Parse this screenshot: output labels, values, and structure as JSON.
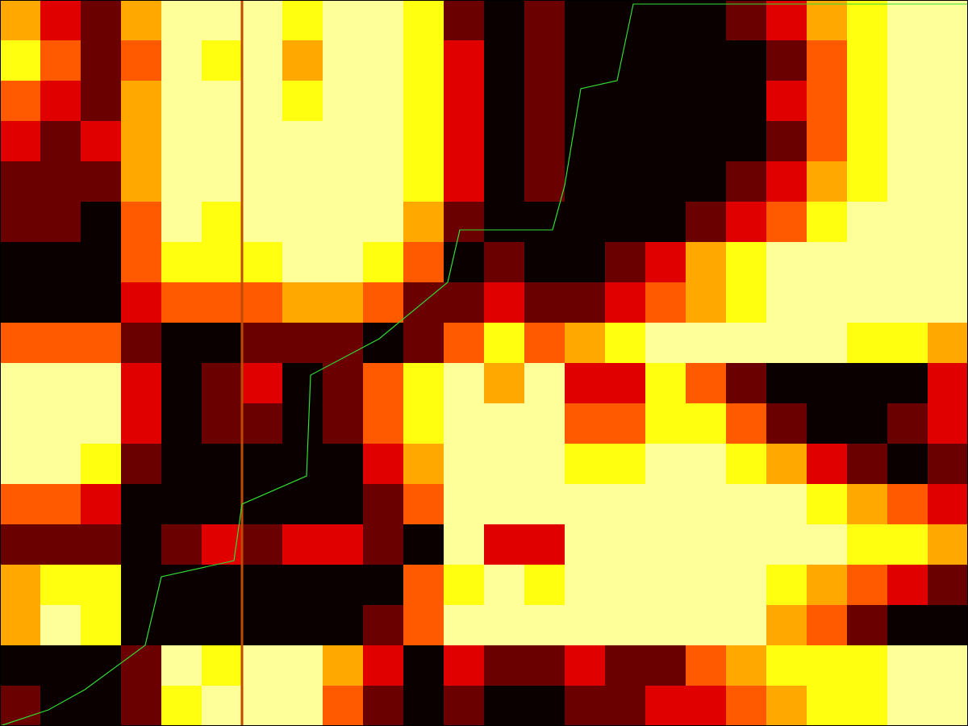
{
  "chart_data": {
    "type": "heatmap",
    "xlim": [
      0,
      24
    ],
    "ylim": [
      18,
      0
    ],
    "zlim": [
      0,
      6
    ],
    "tick_labels": false,
    "cells": [
      [
        4,
        2,
        1,
        4,
        6,
        6,
        6,
        5,
        6,
        6,
        5,
        1,
        0,
        1,
        0,
        0,
        0,
        0,
        1,
        2,
        4,
        5,
        6,
        6
      ],
      [
        5,
        3,
        1,
        3,
        6,
        5,
        6,
        4,
        6,
        6,
        5,
        2,
        0,
        1,
        0,
        0,
        0,
        0,
        0,
        1,
        3,
        5,
        6,
        6
      ],
      [
        3,
        2,
        1,
        4,
        6,
        6,
        6,
        5,
        6,
        6,
        5,
        2,
        0,
        1,
        0,
        0,
        0,
        0,
        0,
        2,
        3,
        5,
        6,
        6
      ],
      [
        2,
        1,
        2,
        4,
        6,
        6,
        6,
        6,
        6,
        6,
        5,
        2,
        0,
        1,
        0,
        0,
        0,
        0,
        0,
        1,
        3,
        5,
        6,
        6
      ],
      [
        1,
        1,
        1,
        4,
        6,
        6,
        6,
        6,
        6,
        6,
        5,
        2,
        0,
        1,
        0,
        0,
        0,
        0,
        1,
        2,
        4,
        5,
        6,
        6
      ],
      [
        1,
        1,
        0,
        3,
        6,
        5,
        6,
        6,
        6,
        6,
        4,
        1,
        0,
        0,
        0,
        0,
        0,
        1,
        2,
        3,
        5,
        6,
        6,
        6
      ],
      [
        0,
        0,
        0,
        3,
        5,
        5,
        5,
        6,
        6,
        5,
        3,
        0,
        1,
        0,
        0,
        1,
        2,
        4,
        5,
        6,
        6,
        6,
        6,
        6
      ],
      [
        0,
        0,
        0,
        2,
        3,
        3,
        3,
        4,
        4,
        3,
        1,
        1,
        2,
        1,
        1,
        2,
        3,
        4,
        5,
        6,
        6,
        6,
        6,
        6
      ],
      [
        3,
        3,
        3,
        1,
        0,
        0,
        1,
        1,
        1,
        0,
        1,
        3,
        5,
        3,
        4,
        5,
        6,
        6,
        6,
        6,
        6,
        5,
        5,
        4
      ],
      [
        6,
        6,
        6,
        2,
        0,
        1,
        2,
        0,
        1,
        3,
        5,
        6,
        4,
        6,
        2,
        2,
        5,
        3,
        1,
        0,
        0,
        0,
        0,
        2
      ],
      [
        6,
        6,
        6,
        2,
        0,
        1,
        1,
        0,
        1,
        3,
        5,
        6,
        6,
        6,
        3,
        3,
        5,
        5,
        3,
        1,
        0,
        0,
        1,
        2
      ],
      [
        6,
        6,
        5,
        1,
        0,
        0,
        0,
        0,
        0,
        2,
        4,
        6,
        6,
        6,
        5,
        5,
        6,
        6,
        5,
        4,
        2,
        1,
        0,
        1
      ],
      [
        3,
        3,
        2,
        0,
        0,
        0,
        0,
        0,
        0,
        1,
        3,
        6,
        6,
        6,
        6,
        6,
        6,
        6,
        6,
        6,
        5,
        4,
        3,
        2
      ],
      [
        1,
        1,
        1,
        0,
        1,
        2,
        1,
        2,
        2,
        1,
        0,
        6,
        2,
        2,
        6,
        6,
        6,
        6,
        6,
        6,
        6,
        5,
        5,
        4
      ],
      [
        4,
        5,
        5,
        0,
        0,
        0,
        0,
        0,
        0,
        0,
        3,
        5,
        6,
        5,
        6,
        6,
        6,
        6,
        6,
        5,
        4,
        3,
        2,
        1
      ],
      [
        4,
        6,
        5,
        0,
        0,
        0,
        0,
        0,
        0,
        1,
        3,
        6,
        6,
        6,
        6,
        6,
        6,
        6,
        6,
        4,
        3,
        1,
        0,
        0
      ],
      [
        0,
        0,
        0,
        1,
        6,
        5,
        6,
        6,
        4,
        2,
        0,
        2,
        1,
        1,
        2,
        1,
        1,
        3,
        4,
        5,
        5,
        5,
        6,
        6
      ],
      [
        1,
        0,
        0,
        1,
        5,
        6,
        6,
        6,
        3,
        1,
        0,
        1,
        0,
        0,
        1,
        1,
        2,
        2,
        3,
        4,
        5,
        5,
        6,
        6
      ]
    ],
    "vline": 6,
    "series": [
      {
        "type": "line",
        "color": "#33dd33",
        "x": [
          0,
          1.2,
          2.1,
          3.6,
          4,
          5.8,
          6,
          7.6,
          7.7,
          9.4,
          11.1,
          11.4,
          13.7,
          14,
          14.4,
          15.3,
          15.7,
          24
        ],
        "values": [
          18,
          17.6,
          17.1,
          16,
          14.3,
          13.9,
          12.5,
          11.8,
          9.3,
          8.4,
          7,
          5.7,
          5.7,
          4.6,
          2.2,
          2,
          0.1,
          0.1
        ]
      }
    ]
  }
}
